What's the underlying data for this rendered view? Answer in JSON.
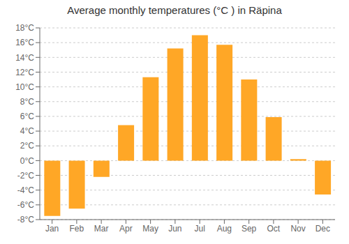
{
  "chart_data": {
    "type": "bar",
    "title": "Average monthly temperatures (°C ) in Räpina",
    "categories": [
      "Jan",
      "Feb",
      "Mar",
      "Apr",
      "May",
      "Jun",
      "Jul",
      "Aug",
      "Sep",
      "Oct",
      "Nov",
      "Dec"
    ],
    "values": [
      -7.5,
      -6.5,
      -2.2,
      4.8,
      11.3,
      15.2,
      17.0,
      15.7,
      11.0,
      5.9,
      0.2,
      -4.6
    ],
    "color": "#FFA726",
    "ylim": [
      -8,
      18
    ],
    "yticks": [
      {
        "value": -8,
        "label": "-8°C"
      },
      {
        "value": -6,
        "label": "-6°C"
      },
      {
        "value": -4,
        "label": "-4°C"
      },
      {
        "value": -2,
        "label": "-2°C"
      },
      {
        "value": 0,
        "label": "0°C"
      },
      {
        "value": 2,
        "label": "2°C"
      },
      {
        "value": 4,
        "label": "4°C"
      },
      {
        "value": 6,
        "label": "6°C"
      },
      {
        "value": 8,
        "label": "8°C"
      },
      {
        "value": 10,
        "label": "10°C"
      },
      {
        "value": 12,
        "label": "12°C"
      },
      {
        "value": 14,
        "label": "14°C"
      },
      {
        "value": 16,
        "label": "16°C"
      },
      {
        "value": 18,
        "label": "18°C"
      }
    ],
    "grid": true
  }
}
